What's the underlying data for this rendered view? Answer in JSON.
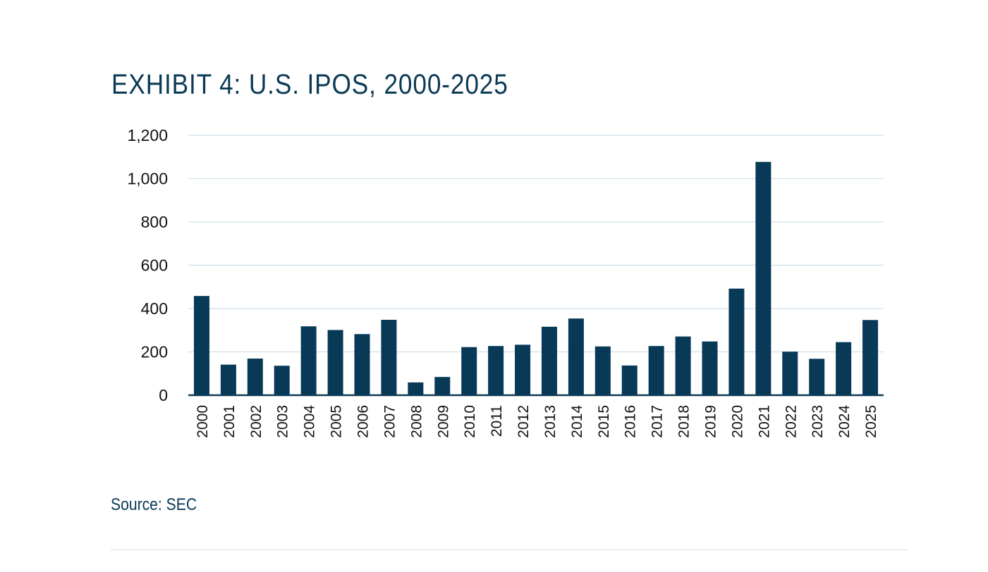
{
  "title": "EXHIBIT 4: U.S. IPOS, 2000-2025",
  "source": "Source: SEC",
  "colors": {
    "bar": "#083a57",
    "grid": "#cfe0ea",
    "axis": "#0b3a55",
    "text": "#0b3a55"
  },
  "chart_data": {
    "type": "bar",
    "title": "EXHIBIT 4: U.S. IPOS, 2000-2025",
    "xlabel": "",
    "ylabel": "",
    "ylim": [
      0,
      1200
    ],
    "yticks": [
      "0",
      "200",
      "400",
      "600",
      "800",
      "1,000",
      "1,200"
    ],
    "ytick_values": [
      0,
      200,
      400,
      600,
      800,
      1000,
      1200
    ],
    "grid": true,
    "categories": [
      "2000",
      "2001",
      "2002",
      "2003",
      "2004",
      "2005",
      "2006",
      "2007",
      "2008",
      "2009",
      "2010",
      "2011",
      "2012",
      "2013",
      "2014",
      "2015",
      "2016",
      "2017",
      "2018",
      "2019",
      "2020",
      "2021",
      "2022",
      "2023",
      "2024",
      "2025"
    ],
    "values": [
      458,
      141,
      169,
      136,
      318,
      301,
      282,
      348,
      59,
      84,
      222,
      227,
      233,
      316,
      354,
      225,
      137,
      227,
      271,
      248,
      492,
      1077,
      201,
      168,
      245,
      347
    ]
  }
}
